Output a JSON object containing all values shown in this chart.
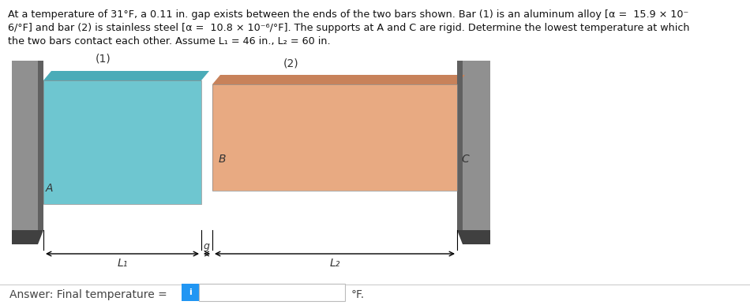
{
  "bg_color": "#ffffff",
  "bar1_color": "#6ec6d0",
  "bar1_top_color": "#4aacb8",
  "bar2_color": "#e8aa82",
  "bar2_top_color": "#c8825a",
  "wall_color": "#909090",
  "wall_dark_color": "#606060",
  "wall_shadow_color": "#404040",
  "answer_box_color": "#2196F3",
  "answer_text": "Answer: Final temperature = ",
  "deg_f_text": "°F.",
  "label1": "(1)",
  "label2": "(2)",
  "label_A": "A",
  "label_B": "B",
  "label_C": "C",
  "label_L1": "L₁",
  "label_L2": "L₂",
  "label_g": "g",
  "line1": "At a temperature of 31°F, a 0.11 in. gap exists between the ends of the two bars shown. Bar (1) is an aluminum alloy [α =  15.9 × 10⁻",
  "line2": "6/°F] and bar (2) is stainless steel [α =  10.8 × 10⁻⁶/°F]. The supports at A and C are rigid. Determine the lowest temperature at which",
  "line3": "the two bars contact each other. Assume L₁ = 46 in., L₂ = 60 in."
}
